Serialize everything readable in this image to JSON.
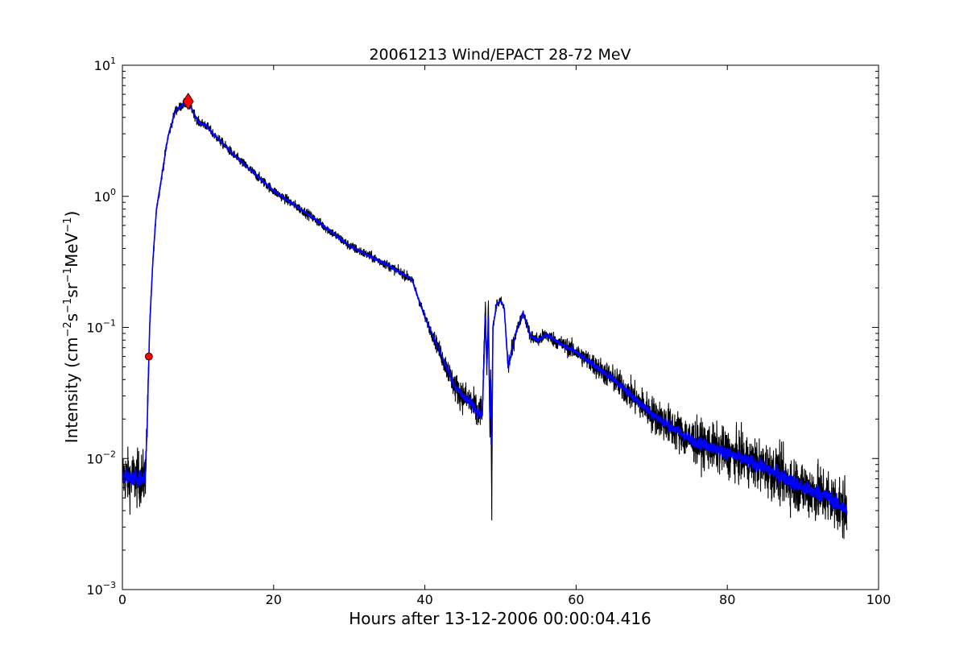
{
  "chart_data": {
    "type": "line",
    "title": "20061213 Wind/EPACT 28-72 MeV",
    "xlabel": "Hours after 13-12-2006 00:00:04.416",
    "ylabel_parts": {
      "before": "Intensity (cm",
      "sup1": "−2",
      "mid1": "s",
      "sup2": "−1",
      "mid2": "sr",
      "sup3": "−1",
      "mid3": "MeV",
      "sup4": "−1",
      "after": ")"
    },
    "xlim": [
      0,
      100
    ],
    "ylim": [
      0.001,
      10
    ],
    "yscale": "log",
    "grid": false,
    "x_ticks": [
      {
        "value": 0,
        "label": "0"
      },
      {
        "value": 20,
        "label": "20"
      },
      {
        "value": 40,
        "label": "40"
      },
      {
        "value": 60,
        "label": "60"
      },
      {
        "value": 80,
        "label": "80"
      },
      {
        "value": 100,
        "label": "100"
      }
    ],
    "y_ticks": [
      {
        "value": 0.001,
        "base": "10",
        "exp": "−3"
      },
      {
        "value": 0.01,
        "base": "10",
        "exp": "−2"
      },
      {
        "value": 0.1,
        "base": "10",
        "exp": "−1"
      },
      {
        "value": 1,
        "base": "10",
        "exp": "0"
      },
      {
        "value": 10,
        "base": "10",
        "exp": "1"
      }
    ],
    "series": [
      {
        "style": "raw-intensity",
        "color": "#000000",
        "noise_decades": 0.1,
        "x": [
          0,
          1,
          2,
          3.0,
          3.3,
          3.6,
          4,
          4.5,
          5,
          6,
          7,
          8,
          8.7,
          9.3,
          10,
          11,
          12,
          15,
          20,
          25,
          30,
          35,
          37.9,
          38.3,
          40,
          42,
          44,
          45,
          46,
          47,
          47.6,
          48,
          48.2,
          48.4,
          48.6,
          48.7,
          48.85,
          49,
          49.5,
          50,
          50.5,
          51,
          51.5,
          52,
          53,
          54,
          55,
          56,
          58,
          60,
          65,
          70,
          75,
          80,
          85,
          90,
          93,
          95.8
        ],
        "y": [
          0.0075,
          0.007,
          0.007,
          0.007,
          0.02,
          0.1,
          0.3,
          0.8,
          1.2,
          2.8,
          4.5,
          5.0,
          5.2,
          4.5,
          3.7,
          3.5,
          3.0,
          2.0,
          1.1,
          0.7,
          0.42,
          0.3,
          0.24,
          0.23,
          0.12,
          0.065,
          0.035,
          0.03,
          0.027,
          0.022,
          0.022,
          0.16,
          0.04,
          0.16,
          0.015,
          0.04,
          0.0045,
          0.1,
          0.15,
          0.16,
          0.14,
          0.05,
          0.065,
          0.09,
          0.13,
          0.085,
          0.08,
          0.088,
          0.075,
          0.065,
          0.04,
          0.022,
          0.014,
          0.011,
          0.0085,
          0.006,
          0.0052,
          0.004
        ]
      },
      {
        "style": "smoothed-intensity",
        "color": "#0000ff",
        "noise_decades": 0.025,
        "x": [
          0,
          1,
          2,
          3.0,
          3.3,
          3.6,
          4,
          4.5,
          5,
          6,
          7,
          8,
          8.7,
          9.3,
          10,
          11,
          12,
          15,
          20,
          25,
          30,
          35,
          37.9,
          38.3,
          40,
          42,
          44,
          45,
          46,
          47,
          47.6,
          48,
          48.2,
          48.4,
          48.6,
          48.7,
          48.85,
          49,
          49.5,
          50,
          50.5,
          51,
          51.5,
          52,
          53,
          54,
          55,
          56,
          58,
          60,
          65,
          70,
          75,
          80,
          85,
          90,
          93,
          95.8
        ],
        "y": [
          0.0075,
          0.007,
          0.007,
          0.007,
          0.02,
          0.1,
          0.3,
          0.8,
          1.2,
          2.8,
          4.5,
          5.0,
          5.2,
          4.5,
          3.7,
          3.5,
          3.0,
          2.0,
          1.1,
          0.7,
          0.42,
          0.3,
          0.24,
          0.23,
          0.12,
          0.065,
          0.035,
          0.03,
          0.027,
          0.022,
          0.022,
          0.12,
          0.05,
          0.12,
          0.02,
          0.04,
          0.013,
          0.1,
          0.15,
          0.16,
          0.14,
          0.05,
          0.065,
          0.09,
          0.13,
          0.085,
          0.08,
          0.088,
          0.075,
          0.065,
          0.04,
          0.022,
          0.014,
          0.011,
          0.0085,
          0.006,
          0.0052,
          0.004
        ]
      }
    ],
    "markers": [
      {
        "kind": "onset",
        "shape": "circle",
        "x": 3.5,
        "y": 0.06,
        "color": "#ff0000"
      },
      {
        "kind": "peak",
        "shape": "diamond",
        "x": 8.7,
        "y": 5.3,
        "color": "#ff0000"
      }
    ]
  }
}
